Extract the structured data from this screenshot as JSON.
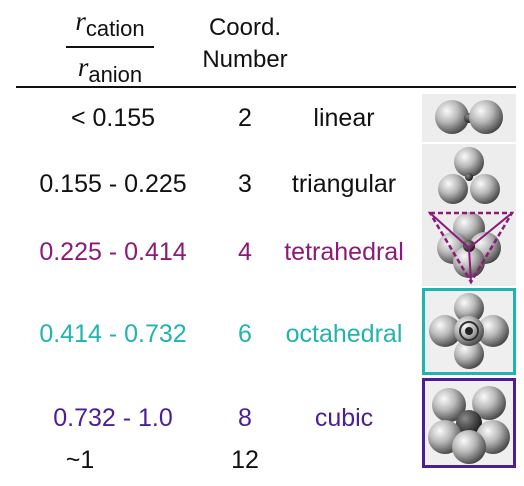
{
  "header": {
    "ratio_numerator_symbol": "r",
    "ratio_numerator_sub": "cation",
    "ratio_denominator_symbol": "r",
    "ratio_denominator_sub": "anion",
    "coord_line1": "Coord.",
    "coord_line2": "Number"
  },
  "colors": {
    "linear": "#111111",
    "triangular": "#111111",
    "tetrahedral": "#8b1a78",
    "octahedral": "#20b3b0",
    "cubic": "#4b1f94"
  },
  "rows": [
    {
      "range": "< 0.155",
      "coordination": "2",
      "geometry": "linear",
      "image": "linear-cluster-icon"
    },
    {
      "range": "0.155 - 0.225",
      "coordination": "3",
      "geometry": "triangular",
      "image": "triangular-cluster-icon"
    },
    {
      "range": "0.225 - 0.414",
      "coordination": "4",
      "geometry": "tetrahedral",
      "image": "tetrahedral-cluster-icon"
    },
    {
      "range": "0.414 - 0.732",
      "coordination": "6",
      "geometry": "octahedral",
      "image": "octahedral-cluster-icon"
    },
    {
      "range": "0.732 - 1.0",
      "coordination": "8",
      "geometry": "cubic",
      "image": "cubic-cluster-icon"
    },
    {
      "range": "~1",
      "coordination": "12",
      "geometry": ""
    }
  ]
}
